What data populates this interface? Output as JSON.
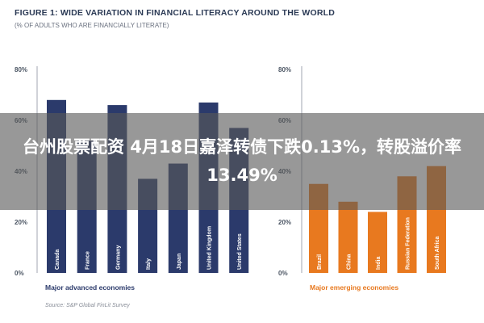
{
  "header": {
    "title": "FIGURE 1: WIDE VARIATION IN FINANCIAL LITERACY AROUND THE WORLD",
    "subtitle": "(% OF ADULTS WHO ARE FINANCIALLY LITERATE)"
  },
  "overlay": {
    "caption": "台州股票配资 4月18日嘉泽转债下跌0.13%，转股溢价率13.49%"
  },
  "source": "Source: S&P Global FinLit Survey",
  "colors": {
    "advanced": "#2b3a6b",
    "emerging": "#e8791f",
    "axis": "#a0a6b0"
  },
  "chart_data": [
    {
      "type": "bar",
      "group_label": "Major advanced economies",
      "categories": [
        "Canada",
        "France",
        "Germany",
        "Italy",
        "Japan",
        "United Kingdom",
        "United States"
      ],
      "values": [
        68,
        52,
        66,
        37,
        43,
        67,
        57
      ],
      "ylim": [
        0,
        80
      ],
      "yticks": [
        "0%",
        "20%",
        "40%",
        "60%",
        "80%"
      ],
      "color": "#2b3a6b"
    },
    {
      "type": "bar",
      "group_label": "Major emerging economies",
      "categories": [
        "Brazil",
        "China",
        "India",
        "Russian Federation",
        "South Africa"
      ],
      "values": [
        35,
        28,
        24,
        38,
        42
      ],
      "ylim": [
        0,
        80
      ],
      "yticks": [
        "0%",
        "20%",
        "40%",
        "60%",
        "80%"
      ],
      "color": "#e8791f"
    }
  ]
}
